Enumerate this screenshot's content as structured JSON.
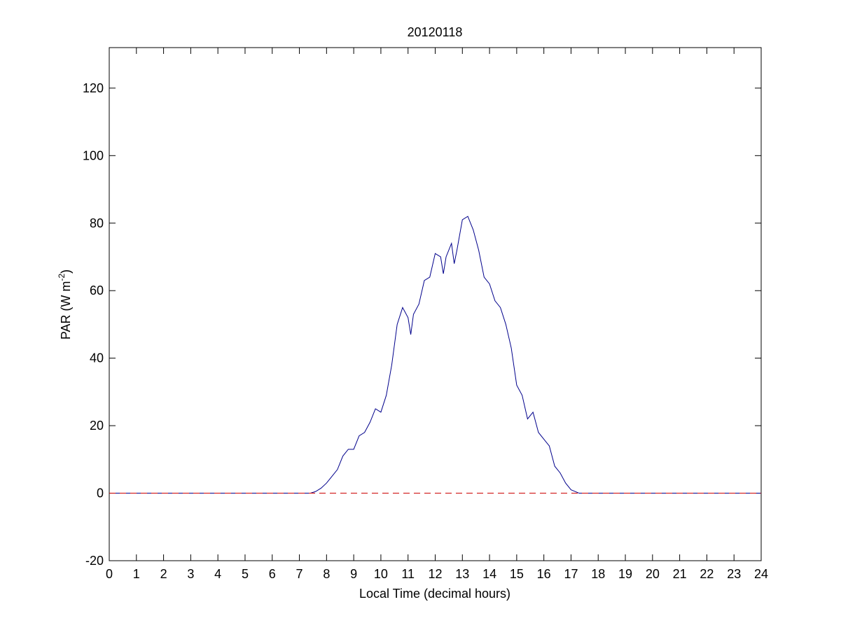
{
  "chart_data": {
    "type": "line",
    "title": "20120118",
    "xlabel": "Local Time (decimal hours)",
    "ylabel": {
      "text": "PAR (W m",
      "superscript": "-2",
      "suffix": ")"
    },
    "xlim": [
      0,
      24
    ],
    "ylim": [
      -20,
      132
    ],
    "xticks": [
      0,
      1,
      2,
      3,
      4,
      5,
      6,
      7,
      8,
      9,
      10,
      11,
      12,
      13,
      14,
      15,
      16,
      17,
      18,
      19,
      20,
      21,
      22,
      23,
      24
    ],
    "yticks": [
      -20,
      0,
      20,
      40,
      60,
      80,
      100,
      120
    ],
    "grid": false,
    "series": [
      {
        "color": "#00008b",
        "dash": "solid",
        "x": [
          0,
          7.4,
          7.6,
          7.8,
          8.0,
          8.2,
          8.4,
          8.6,
          8.8,
          9.0,
          9.2,
          9.4,
          9.6,
          9.8,
          10.0,
          10.2,
          10.4,
          10.6,
          10.8,
          11.0,
          11.1,
          11.2,
          11.4,
          11.6,
          11.8,
          12.0,
          12.2,
          12.3,
          12.4,
          12.6,
          12.7,
          12.8,
          13.0,
          13.2,
          13.4,
          13.6,
          13.8,
          14.0,
          14.2,
          14.4,
          14.6,
          14.8,
          15.0,
          15.2,
          15.4,
          15.6,
          15.8,
          16.0,
          16.2,
          16.4,
          16.6,
          16.8,
          17.0,
          17.3,
          17.5,
          24
        ],
        "values": [
          0,
          0,
          0.5,
          1.5,
          3,
          5,
          7,
          11,
          13,
          13,
          17,
          18,
          21,
          25,
          24,
          29,
          38,
          50,
          55,
          52,
          47,
          53,
          56,
          63,
          64,
          71,
          70,
          65,
          70,
          74,
          68,
          72,
          81,
          82,
          78,
          72,
          64,
          62,
          57,
          55,
          50,
          43,
          32,
          29,
          22,
          24,
          18,
          16,
          14,
          8,
          6,
          3,
          1,
          0,
          0,
          0
        ]
      },
      {
        "color": "#cc0000",
        "dash": "dashed",
        "x": [
          0,
          24
        ],
        "values": [
          0,
          0
        ]
      }
    ]
  }
}
